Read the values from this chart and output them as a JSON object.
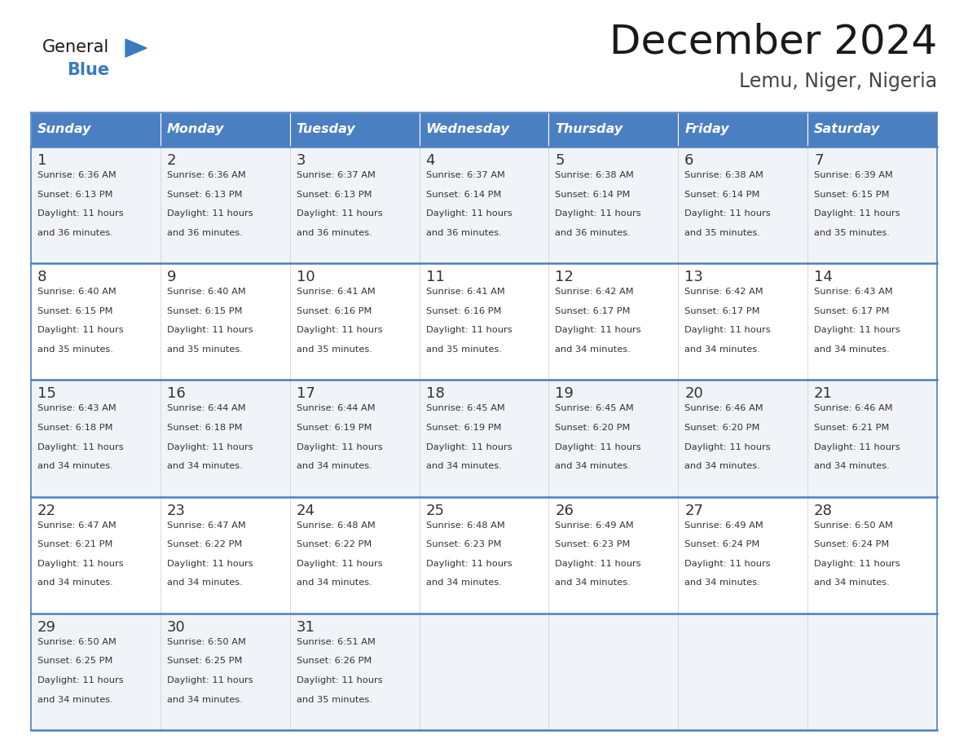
{
  "title": "December 2024",
  "subtitle": "Lemu, Niger, Nigeria",
  "days_of_week": [
    "Sunday",
    "Monday",
    "Tuesday",
    "Wednesday",
    "Thursday",
    "Friday",
    "Saturday"
  ],
  "header_bg": "#4a7fc1",
  "header_text": "#FFFFFF",
  "row_bg_odd": "#f0f4f8",
  "row_bg_even": "#FFFFFF",
  "cell_border_color": "#4a7fc1",
  "text_color": "#333333",
  "logo_general_color": "#1a1a1a",
  "logo_blue_color": "#3a7abf",
  "logo_triangle_color": "#3a7abf",
  "calendar_data": [
    [
      {
        "day": 1,
        "sunrise": "6:36 AM",
        "sunset": "6:13 PM",
        "daylight": "11 hours\nand 36 minutes."
      },
      {
        "day": 2,
        "sunrise": "6:36 AM",
        "sunset": "6:13 PM",
        "daylight": "11 hours\nand 36 minutes."
      },
      {
        "day": 3,
        "sunrise": "6:37 AM",
        "sunset": "6:13 PM",
        "daylight": "11 hours\nand 36 minutes."
      },
      {
        "day": 4,
        "sunrise": "6:37 AM",
        "sunset": "6:14 PM",
        "daylight": "11 hours\nand 36 minutes."
      },
      {
        "day": 5,
        "sunrise": "6:38 AM",
        "sunset": "6:14 PM",
        "daylight": "11 hours\nand 36 minutes."
      },
      {
        "day": 6,
        "sunrise": "6:38 AM",
        "sunset": "6:14 PM",
        "daylight": "11 hours\nand 35 minutes."
      },
      {
        "day": 7,
        "sunrise": "6:39 AM",
        "sunset": "6:15 PM",
        "daylight": "11 hours\nand 35 minutes."
      }
    ],
    [
      {
        "day": 8,
        "sunrise": "6:40 AM",
        "sunset": "6:15 PM",
        "daylight": "11 hours\nand 35 minutes."
      },
      {
        "day": 9,
        "sunrise": "6:40 AM",
        "sunset": "6:15 PM",
        "daylight": "11 hours\nand 35 minutes."
      },
      {
        "day": 10,
        "sunrise": "6:41 AM",
        "sunset": "6:16 PM",
        "daylight": "11 hours\nand 35 minutes."
      },
      {
        "day": 11,
        "sunrise": "6:41 AM",
        "sunset": "6:16 PM",
        "daylight": "11 hours\nand 35 minutes."
      },
      {
        "day": 12,
        "sunrise": "6:42 AM",
        "sunset": "6:17 PM",
        "daylight": "11 hours\nand 34 minutes."
      },
      {
        "day": 13,
        "sunrise": "6:42 AM",
        "sunset": "6:17 PM",
        "daylight": "11 hours\nand 34 minutes."
      },
      {
        "day": 14,
        "sunrise": "6:43 AM",
        "sunset": "6:17 PM",
        "daylight": "11 hours\nand 34 minutes."
      }
    ],
    [
      {
        "day": 15,
        "sunrise": "6:43 AM",
        "sunset": "6:18 PM",
        "daylight": "11 hours\nand 34 minutes."
      },
      {
        "day": 16,
        "sunrise": "6:44 AM",
        "sunset": "6:18 PM",
        "daylight": "11 hours\nand 34 minutes."
      },
      {
        "day": 17,
        "sunrise": "6:44 AM",
        "sunset": "6:19 PM",
        "daylight": "11 hours\nand 34 minutes."
      },
      {
        "day": 18,
        "sunrise": "6:45 AM",
        "sunset": "6:19 PM",
        "daylight": "11 hours\nand 34 minutes."
      },
      {
        "day": 19,
        "sunrise": "6:45 AM",
        "sunset": "6:20 PM",
        "daylight": "11 hours\nand 34 minutes."
      },
      {
        "day": 20,
        "sunrise": "6:46 AM",
        "sunset": "6:20 PM",
        "daylight": "11 hours\nand 34 minutes."
      },
      {
        "day": 21,
        "sunrise": "6:46 AM",
        "sunset": "6:21 PM",
        "daylight": "11 hours\nand 34 minutes."
      }
    ],
    [
      {
        "day": 22,
        "sunrise": "6:47 AM",
        "sunset": "6:21 PM",
        "daylight": "11 hours\nand 34 minutes."
      },
      {
        "day": 23,
        "sunrise": "6:47 AM",
        "sunset": "6:22 PM",
        "daylight": "11 hours\nand 34 minutes."
      },
      {
        "day": 24,
        "sunrise": "6:48 AM",
        "sunset": "6:22 PM",
        "daylight": "11 hours\nand 34 minutes."
      },
      {
        "day": 25,
        "sunrise": "6:48 AM",
        "sunset": "6:23 PM",
        "daylight": "11 hours\nand 34 minutes."
      },
      {
        "day": 26,
        "sunrise": "6:49 AM",
        "sunset": "6:23 PM",
        "daylight": "11 hours\nand 34 minutes."
      },
      {
        "day": 27,
        "sunrise": "6:49 AM",
        "sunset": "6:24 PM",
        "daylight": "11 hours\nand 34 minutes."
      },
      {
        "day": 28,
        "sunrise": "6:50 AM",
        "sunset": "6:24 PM",
        "daylight": "11 hours\nand 34 minutes."
      }
    ],
    [
      {
        "day": 29,
        "sunrise": "6:50 AM",
        "sunset": "6:25 PM",
        "daylight": "11 hours\nand 34 minutes."
      },
      {
        "day": 30,
        "sunrise": "6:50 AM",
        "sunset": "6:25 PM",
        "daylight": "11 hours\nand 34 minutes."
      },
      {
        "day": 31,
        "sunrise": "6:51 AM",
        "sunset": "6:26 PM",
        "daylight": "11 hours\nand 35 minutes."
      },
      null,
      null,
      null,
      null
    ]
  ]
}
